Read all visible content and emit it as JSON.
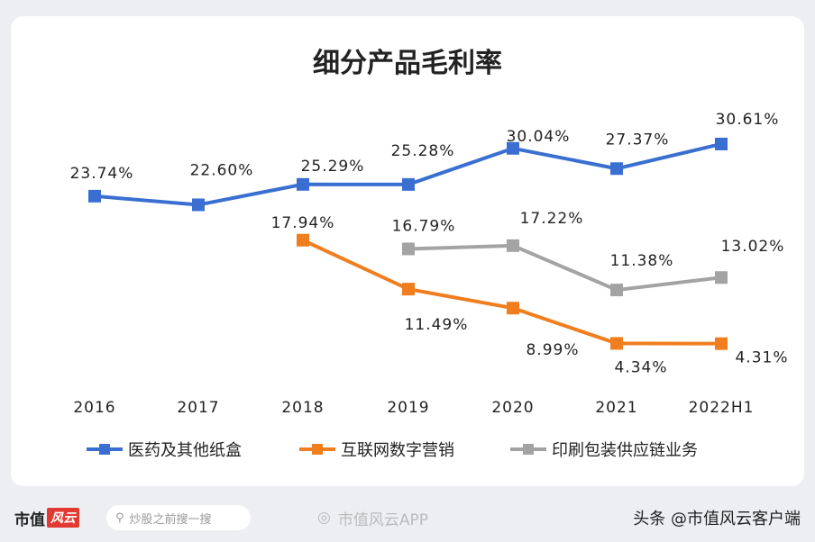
{
  "chart_data": {
    "type": "line",
    "title": "细分产品毛利率",
    "categories": [
      "2016",
      "2017",
      "2018",
      "2019",
      "2020",
      "2021",
      "2022H1"
    ],
    "series": [
      {
        "name": "医药及其他纸盒",
        "color": "#3a6fd1",
        "values": [
          23.74,
          22.6,
          25.29,
          25.28,
          30.04,
          27.37,
          30.61
        ],
        "labels": [
          "23.74%",
          "22.60%",
          "25.29%",
          "25.28%",
          "30.04%",
          "27.37%",
          "30.61%"
        ]
      },
      {
        "name": "互联网数字营销",
        "color": "#f07e1e",
        "values": [
          null,
          null,
          17.94,
          11.49,
          8.99,
          4.34,
          4.31
        ],
        "labels": [
          null,
          null,
          "17.94%",
          "11.49%",
          "8.99%",
          "4.34%",
          "4.31%"
        ]
      },
      {
        "name": "印刷包装供应链业务",
        "color": "#a3a3a3",
        "values": [
          null,
          null,
          null,
          16.79,
          17.22,
          11.38,
          13.02
        ],
        "labels": [
          null,
          null,
          null,
          "16.79%",
          "17.22%",
          "11.38%",
          "13.02%"
        ]
      }
    ],
    "legend_position": "bottom",
    "grid": false
  },
  "footer": {
    "brand": "市值",
    "brand_logo": "风云",
    "search_placeholder": "炒股之前搜一搜",
    "app": "市值风云APP",
    "source": "头条 @市值风云客户端"
  }
}
